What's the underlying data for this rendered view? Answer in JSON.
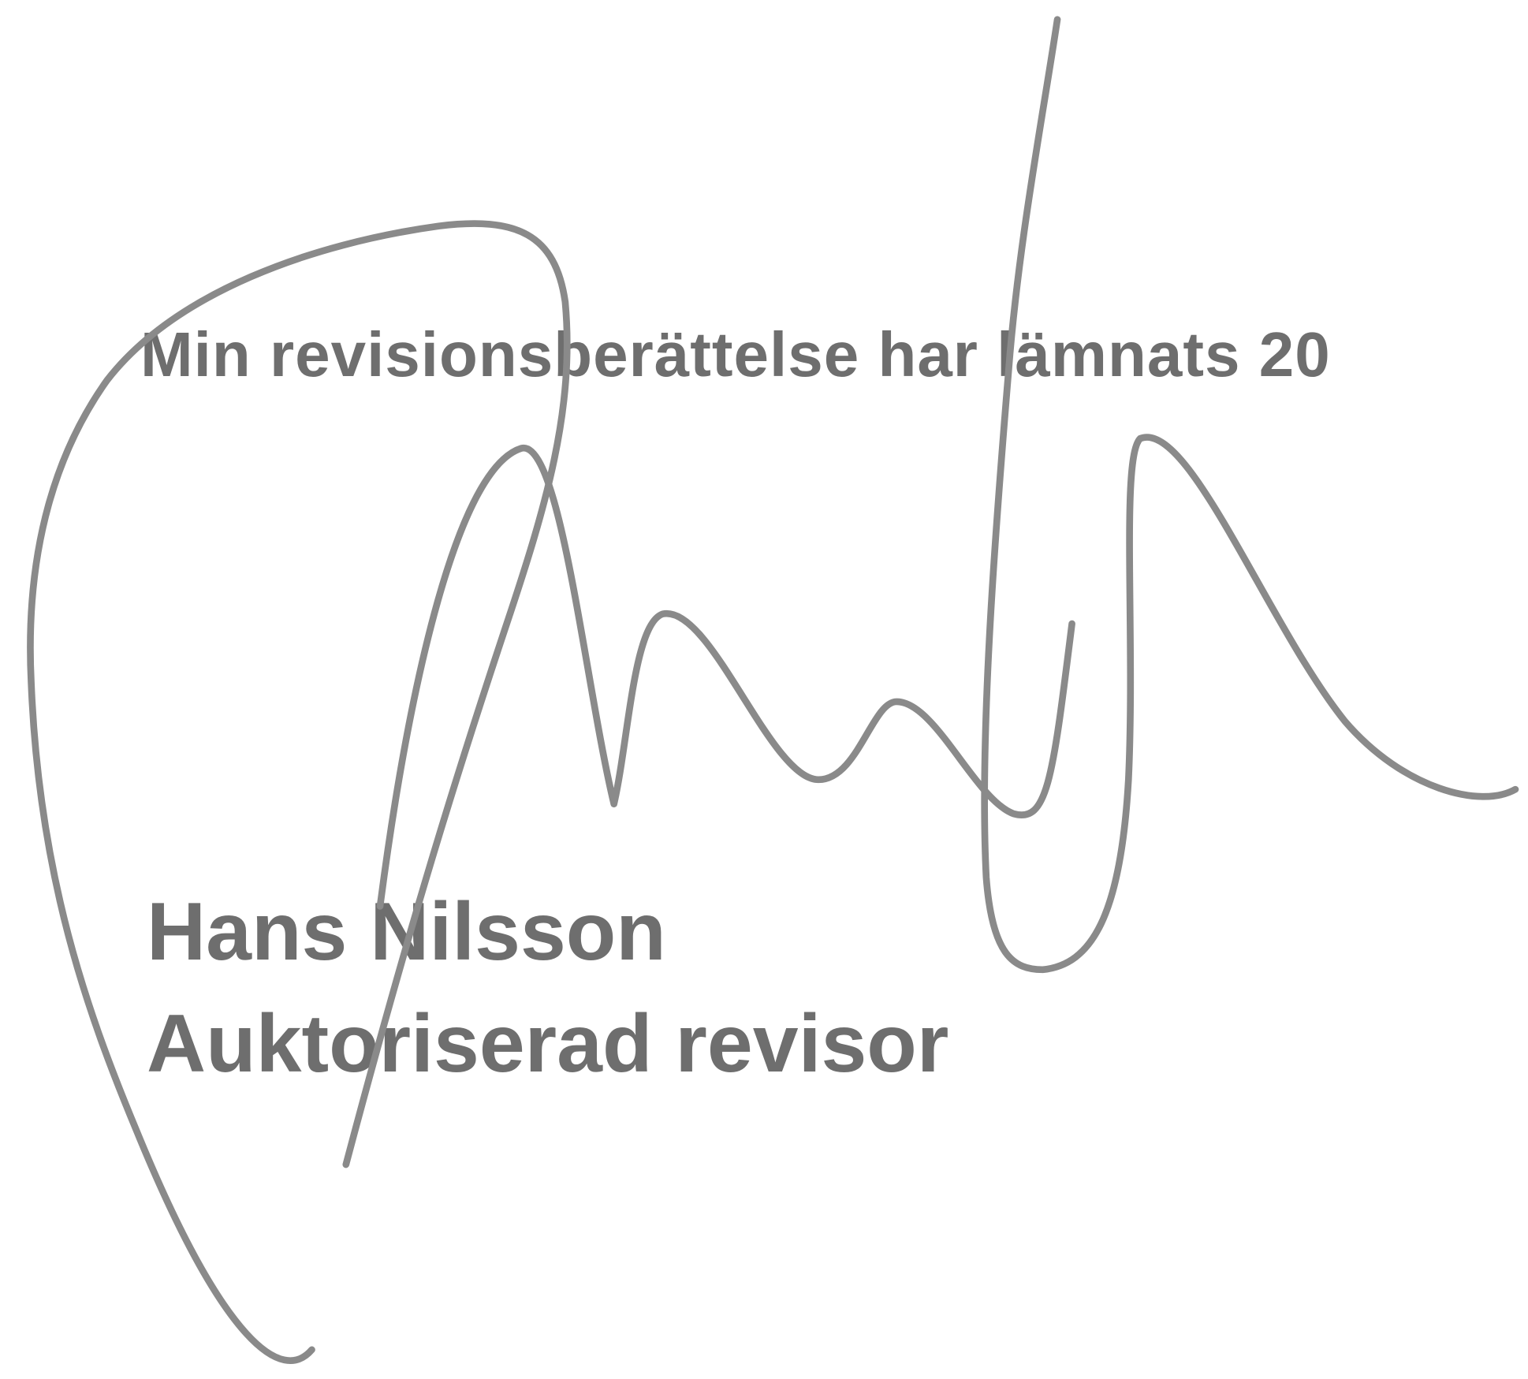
{
  "statement": "Min revisionsberättelse har lämnats 20",
  "signatory": {
    "name": "Hans Nilsson",
    "title": "Auktoriserad revisor"
  }
}
